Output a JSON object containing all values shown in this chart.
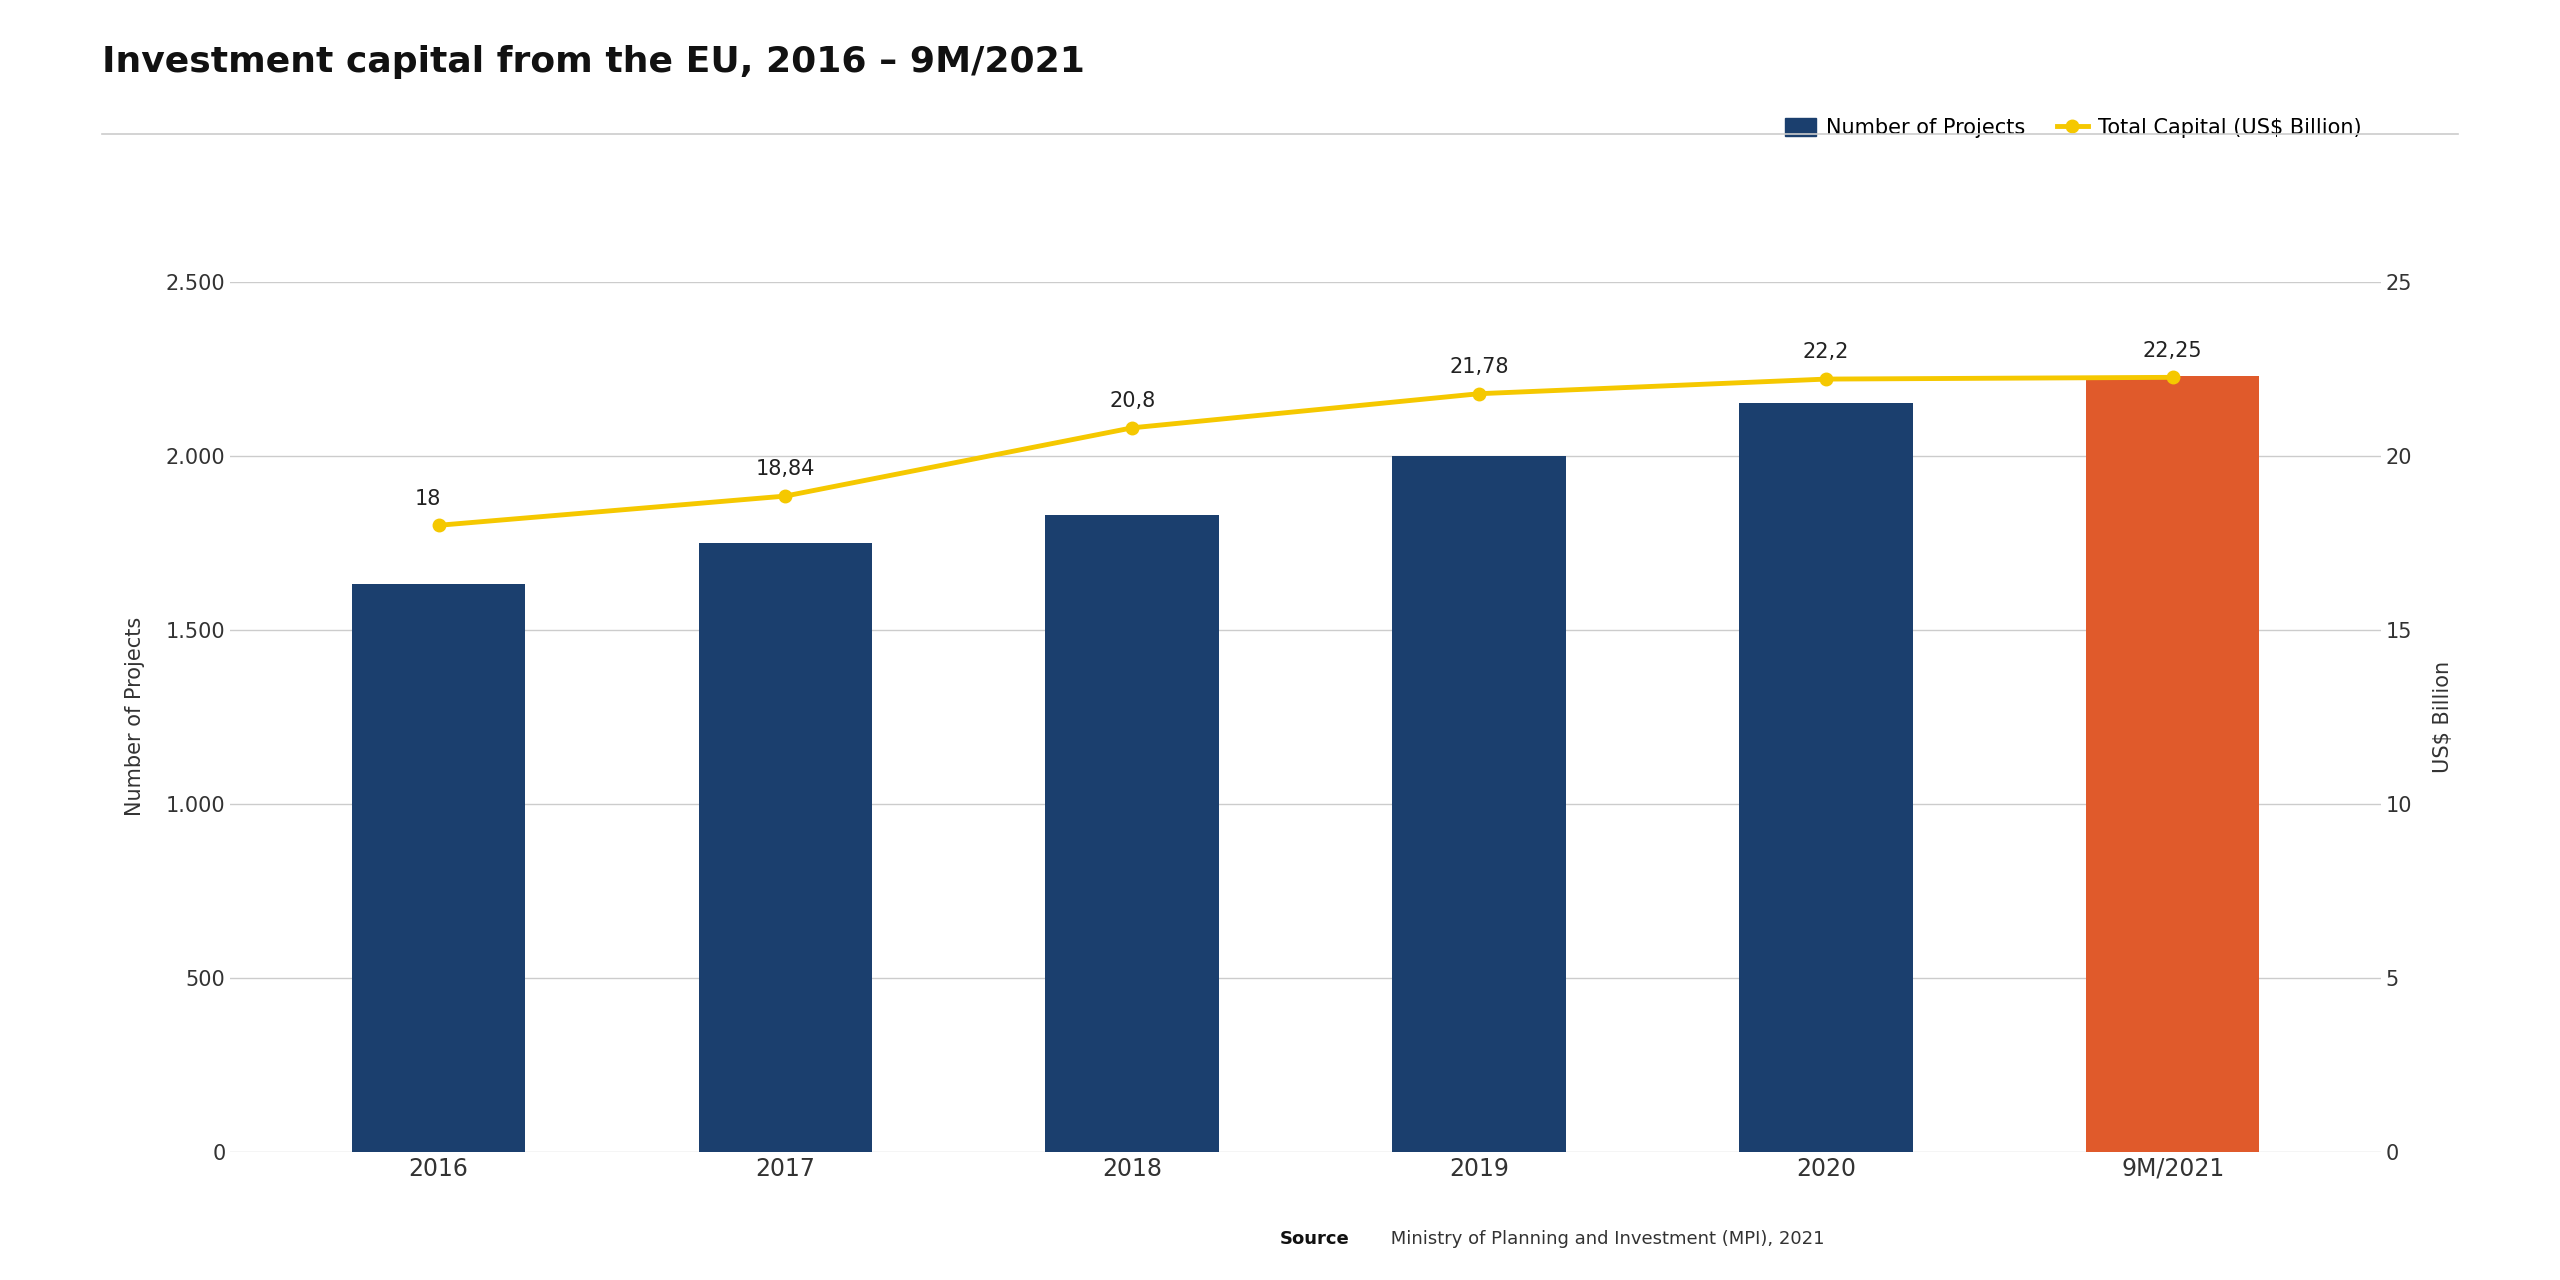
{
  "title": "Investment capital from the EU, 2016 – 9M/2021",
  "categories": [
    "2016",
    "2017",
    "2018",
    "2019",
    "2020",
    "9M/2021"
  ],
  "bar_values": [
    1630,
    1750,
    1830,
    2000,
    2150,
    2230
  ],
  "bar_colors": [
    "#1b3f6e",
    "#1b3f6e",
    "#1b3f6e",
    "#1b3f6e",
    "#1b3f6e",
    "#e05a2b"
  ],
  "line_values": [
    18,
    18.84,
    20.8,
    21.78,
    22.2,
    22.25
  ],
  "line_labels": [
    "18",
    "18,84",
    "20,8",
    "21,78",
    "22,2",
    "22,25"
  ],
  "line_color": "#f5c800",
  "line_width": 3.5,
  "marker_style": "o",
  "marker_size": 9,
  "marker_color": "#f5c800",
  "ylabel_left": "Number of Projects",
  "ylabel_right": "US$ Billion",
  "ylim_left": [
    0,
    2500
  ],
  "ylim_right": [
    0,
    25
  ],
  "yticks_left": [
    0,
    500,
    1000,
    1500,
    2000,
    2500
  ],
  "ytick_labels_left": [
    "0",
    "500",
    "1.000",
    "1.500",
    "2.000",
    "2.500"
  ],
  "yticks_right": [
    0,
    5,
    10,
    15,
    20,
    25
  ],
  "legend_bar_label": "Number of Projects",
  "legend_line_label": "Total Capital (US$ Billion)",
  "source_bold": "Source",
  "source_rest": " Ministry of Planning and Investment (MPI), 2021",
  "title_fontsize": 26,
  "axis_label_fontsize": 15,
  "tick_fontsize": 15,
  "legend_fontsize": 15,
  "annotation_fontsize": 15,
  "background_color": "#ffffff",
  "grid_color": "#cccccc",
  "bar_width": 0.5
}
